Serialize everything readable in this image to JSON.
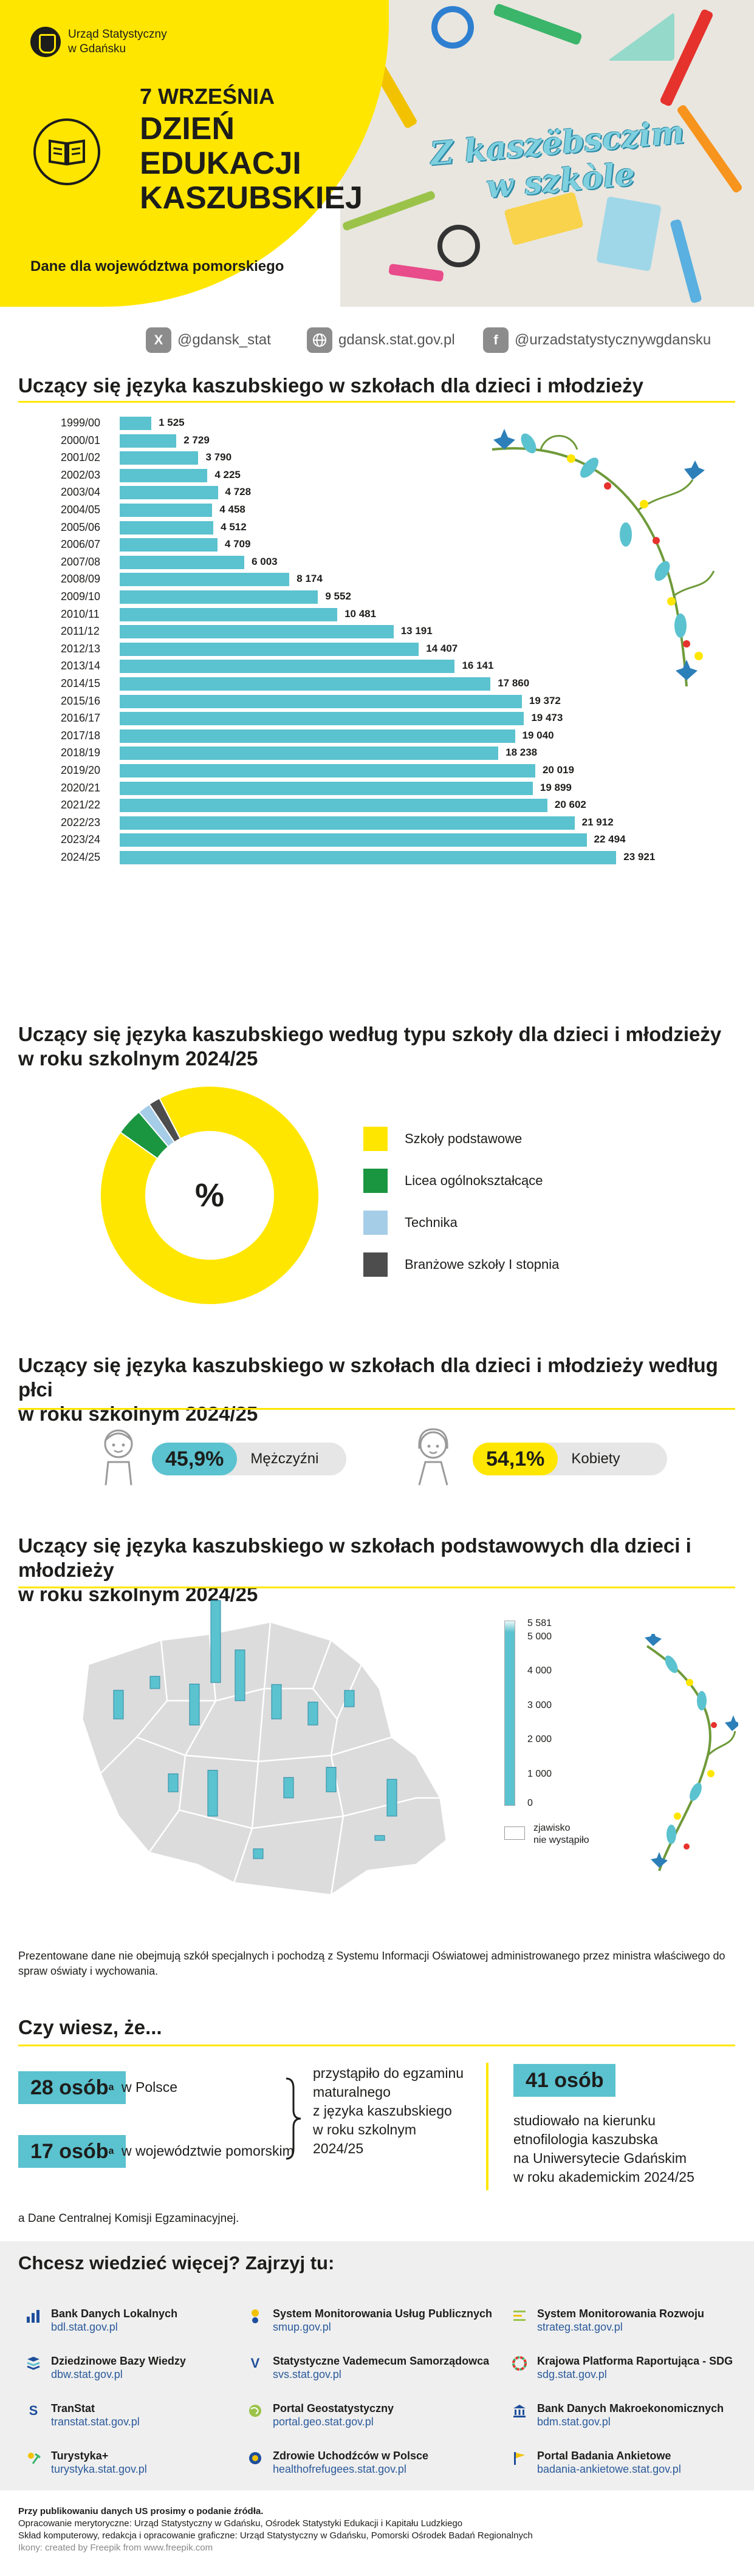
{
  "header": {
    "institution": [
      "Urząd Statystyczny",
      "w Gdańsku"
    ],
    "date": "7 WRZEŚNIA",
    "title_lines": [
      "DZIEŃ",
      "EDUKACJI",
      "KASZUBSKIEJ"
    ],
    "region": "Dane dla województwa pomorskiego",
    "kashubian_title_lines": [
      "Z kaszëbsczim",
      "w szkòle"
    ],
    "colors": {
      "accent_yellow": "#ffe600",
      "accent_cyan": "#5bc2cf"
    }
  },
  "social": {
    "x": {
      "icon": "x-logo-icon",
      "handle": "@gdansk_stat"
    },
    "web": {
      "icon": "globe-icon",
      "handle": "gdansk.stat.gov.pl"
    },
    "facebook": {
      "icon": "facebook-icon",
      "handle": "@urzadstatystycznywgdansku"
    }
  },
  "section1": {
    "title": "Uczący się języka kaszubskiego w szkołach dla dzieci i młodzieży"
  },
  "chart_data": [
    {
      "type": "bar",
      "orientation": "horizontal",
      "title": "Uczący się języka kaszubskiego w szkołach dla dzieci i młodzieży",
      "categories": [
        "1999/00",
        "2000/01",
        "2001/02",
        "2002/03",
        "2003/04",
        "2004/05",
        "2005/06",
        "2006/07",
        "2007/08",
        "2008/09",
        "2009/10",
        "2010/11",
        "2011/12",
        "2012/13",
        "2013/14",
        "2014/15",
        "2015/16",
        "2016/17",
        "2017/18",
        "2018/19",
        "2019/20",
        "2020/21",
        "2021/22",
        "2022/23",
        "2023/24",
        "2024/25"
      ],
      "values": [
        1525,
        2729,
        3790,
        4225,
        4728,
        4458,
        4512,
        4709,
        6003,
        8174,
        9552,
        10481,
        13191,
        14407,
        16141,
        17860,
        19372,
        19473,
        19040,
        18238,
        20019,
        19899,
        20602,
        21912,
        22494,
        23921
      ],
      "value_labels": [
        "1 525",
        "2 729",
        "3 790",
        "4 225",
        "4 728",
        "4 458",
        "4 512",
        "4 709",
        "6 003",
        "8 174",
        "9 552",
        "10 481",
        "13 191",
        "14 407",
        "16 141",
        "17 860",
        "19 372",
        "19 473",
        "19 040",
        "18 238",
        "20 019",
        "19 899",
        "20 602",
        "21 912",
        "22 494",
        "23 921"
      ],
      "color": "#5bc2cf"
    },
    {
      "type": "pie",
      "title": "Uczący się języka kaszubskiego według typu szkoły dla dzieci i młodzieży w roku szkolnym 2024/25",
      "center_label": "%",
      "categories": [
        "Szkoły podstawowe",
        "Licea ogólnokształcące",
        "Technika",
        "Branżowe szkoły I stopnia"
      ],
      "values": [
        92.4,
        4.0,
        1.9,
        1.7
      ],
      "colors": [
        "#ffe600",
        "#1a9641",
        "#a6cde8",
        "#4d4d4d"
      ]
    }
  ],
  "section2": {
    "title_lines": [
      "Uczący się języka kaszubskiego według typu szkoły dla dzieci i młodzieży",
      "w roku szkolnym 2024/25"
    ]
  },
  "section3": {
    "title_lines": [
      "Uczący się języka kaszubskiego w szkołach dla dzieci i młodzieży według płci",
      "w roku szkolnym 2024/25"
    ],
    "male": {
      "pct": "45,9%",
      "label": "Mężczyźni",
      "color": "#5bc2cf",
      "icon": "boy-icon"
    },
    "female": {
      "pct": "54,1%",
      "label": "Kobiety",
      "color": "#ffe600",
      "icon": "girl-icon"
    }
  },
  "section4": {
    "title_lines": [
      "Uczący się języka kaszubskiego w szkołach podstawowych dla dzieci i młodzieży",
      "w roku szkolnym 2024/25"
    ],
    "legend_max": "5 581",
    "legend_ticks": [
      "5 000",
      "4 000",
      "3 000",
      "2 000",
      "1 000",
      "0"
    ],
    "legend_empty": [
      "zjawisko",
      "nie wystąpiło"
    ],
    "map_bars": [
      0.35,
      0.15,
      1.0,
      0.5,
      0.62,
      0.42,
      0.28,
      0.2,
      0.22,
      0.56,
      0.25,
      0.3,
      0.45,
      0.06,
      0.12
    ]
  },
  "note": {
    "text": "Prezentowane dane nie obejmują szkół specjalnych i pochodzą z Systemu Informacji Oświatowej administrowanego przez ministra właściwego do spraw oświaty i wychowania."
  },
  "facts": {
    "title": "Czy wiesz, że...",
    "poland_badge": "28 osób",
    "poland_text": "w Polsce",
    "region_badge": "17 osób",
    "region_text": "w województwie pomorskim",
    "superscript": "a",
    "exam_lines": [
      "przystąpiło do egzaminu",
      "maturalnego",
      "z języka kaszubskiego",
      "w roku szkolnym",
      "2024/25"
    ],
    "university_badge": "41 osób",
    "university_lines": [
      "studiowało na kierunku",
      "etnofilologia kaszubska",
      "na Uniwersytecie Gdańskim",
      "w roku akademickim 2024/25"
    ],
    "footnote": "a Dane Centralnej Komisji Egzaminacyjnej."
  },
  "links": {
    "title": "Chcesz wiedzieć więcej? Zajrzyj tu:",
    "items": [
      {
        "icon": "bar-chart-icon",
        "name": "Bank Danych Lokalnych",
        "url": "bdl.stat.gov.pl"
      },
      {
        "icon": "system-monitoring-icon",
        "name": "System Monitorowania Usług Publicznych",
        "url": "smup.gov.pl"
      },
      {
        "icon": "menu-lines-icon",
        "name": "System Monitorowania Rozwoju",
        "url": "strateg.stat.gov.pl"
      },
      {
        "icon": "layers-icon",
        "name": "Dziedzinowe Bazy Wiedzy",
        "url": "dbw.stat.gov.pl"
      },
      {
        "icon": "check-v-icon",
        "name": "Statystyczne Vademecum Samorządowca",
        "url": "svs.stat.gov.pl"
      },
      {
        "icon": "sdg-wheel-icon",
        "name": "Krajowa Platforma Raportująca - SDG",
        "url": "sdg.stat.gov.pl"
      },
      {
        "icon": "transtat-icon",
        "name": "TranStat",
        "url": "transtat.stat.gov.pl"
      },
      {
        "icon": "globe-icon",
        "name": "Portal Geostatystyczny",
        "url": "portal.geo.stat.gov.pl"
      },
      {
        "icon": "bank-icon",
        "name": "Bank Danych Makroekonomicznych",
        "url": "bdm.stat.gov.pl"
      },
      {
        "icon": "tourism-icon",
        "name": "Turystyka+",
        "url": "turystyka.stat.gov.pl"
      },
      {
        "icon": "health-icon",
        "name": "Zdrowie Uchodźców w Polsce",
        "url": "healthofrefugees.stat.gov.pl"
      },
      {
        "icon": "survey-flag-icon",
        "name": "Portal Badania Ankietowe",
        "url": "badania-ankietowe.stat.gov.pl"
      }
    ]
  },
  "footer": {
    "line1": "Przy publikowaniu danych US prosimy o podanie źródła.",
    "line2": "Opracowanie merytoryczne: Urząd Statystyczny w Gdańsku, Ośrodek Statystyki Edukacji i Kapitału Ludzkiego",
    "line3": "Skład komputerowy, redakcja i opracowanie graficzne: Urząd Statystyczny w Gdańsku, Pomorski Ośrodek Badań Regionalnych",
    "line4": "Ikony: created by Freepik from www.freepik.com"
  }
}
